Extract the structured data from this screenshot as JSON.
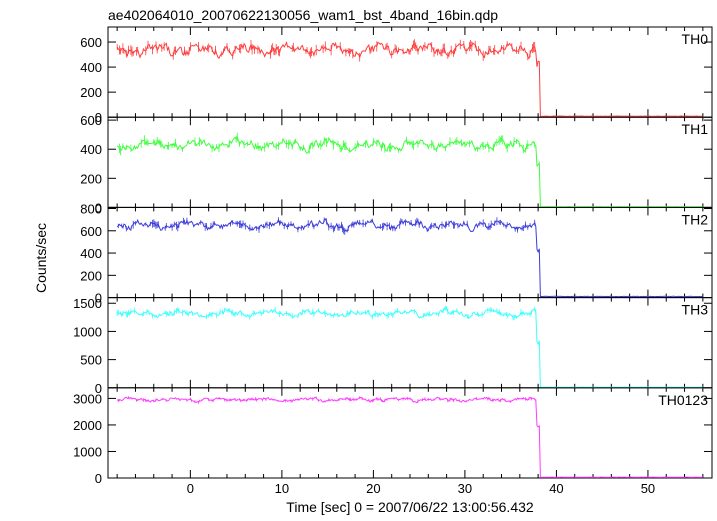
{
  "title": "ae402064010_20070622130056_wam1_bst_4band_16bin.qdp",
  "xlabel": "Time [sec] 0 = 2007/06/22 13:00:56.432",
  "ylabel": "Counts/sec",
  "chart_data": [
    {
      "type": "line",
      "name": "TH0",
      "color": "#ff3b3b",
      "xlim": [
        -9,
        57
      ],
      "ylim": [
        0,
        720
      ],
      "yticks": [
        0,
        200,
        400,
        600
      ],
      "mean": 540,
      "jitter": 70,
      "tail_level": 420,
      "post_level": 8,
      "cutoff": 38.2
    },
    {
      "type": "line",
      "name": "TH1",
      "color": "#3bff3b",
      "xlim": [
        -9,
        57
      ],
      "ylim": [
        0,
        620
      ],
      "yticks": [
        0,
        200,
        400,
        600
      ],
      "mean": 430,
      "jitter": 55,
      "tail_level": 300,
      "post_level": 5,
      "cutoff": 38.2
    },
    {
      "type": "line",
      "name": "TH2",
      "color": "#3b3bd9",
      "xlim": [
        -9,
        57
      ],
      "ylim": [
        0,
        810
      ],
      "yticks": [
        0,
        200,
        400,
        600,
        800
      ],
      "mean": 650,
      "jitter": 60,
      "tail_level": 430,
      "post_level": 10,
      "cutoff": 38.2
    },
    {
      "type": "line",
      "name": "TH3",
      "color": "#3bffff",
      "xlim": [
        -9,
        57
      ],
      "ylim": [
        0,
        1600
      ],
      "yticks": [
        0,
        500,
        1000,
        1500
      ],
      "mean": 1320,
      "jitter": 90,
      "tail_level": 800,
      "post_level": 10,
      "cutoff": 38.2
    },
    {
      "type": "line",
      "name": "TH0123",
      "color": "#ff3bff",
      "xlim": [
        -9,
        57
      ],
      "ylim": [
        0,
        3400
      ],
      "yticks": [
        0,
        1000,
        2000,
        3000
      ],
      "mean": 2950,
      "jitter": 110,
      "tail_level": 1950,
      "post_level": 30,
      "cutoff": 38.2
    }
  ],
  "xticks": [
    0,
    10,
    20,
    30,
    40,
    50
  ]
}
